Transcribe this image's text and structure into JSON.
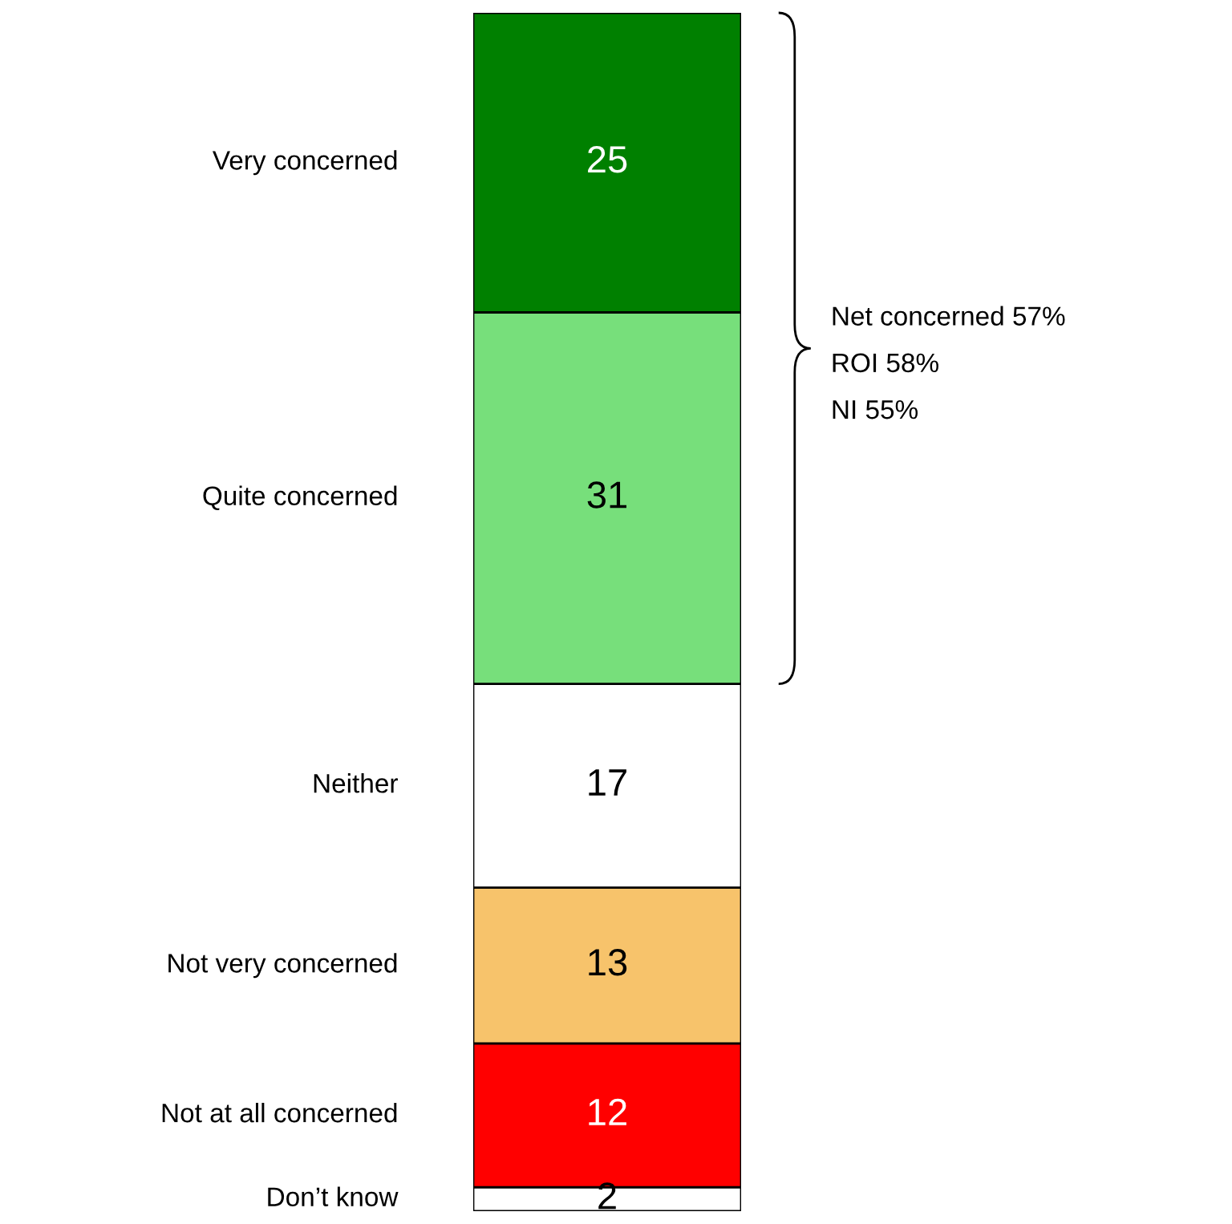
{
  "chart_data": {
    "type": "bar",
    "stacked": true,
    "categories": [
      null
    ],
    "ylim": [
      0,
      100
    ],
    "data_labels": true,
    "series": [
      {
        "name": "Don’t know",
        "color": "#ffffff",
        "values": [
          2
        ]
      },
      {
        "name": "Not at all concerned",
        "color": "#ff0000",
        "values": [
          12
        ]
      },
      {
        "name": "Not very concerned",
        "color": "#f7c36b",
        "values": [
          13
        ]
      },
      {
        "name": "Neither",
        "color": "#ffffff",
        "values": [
          17
        ]
      },
      {
        "name": "Quite concerned",
        "color": "#77df7b",
        "values": [
          31
        ]
      },
      {
        "name": "Very concerned",
        "color": "#008000",
        "values": [
          25
        ]
      }
    ],
    "annotations": [
      "Net concerned 57%",
      "ROI 58%",
      "NI 55%"
    ]
  }
}
